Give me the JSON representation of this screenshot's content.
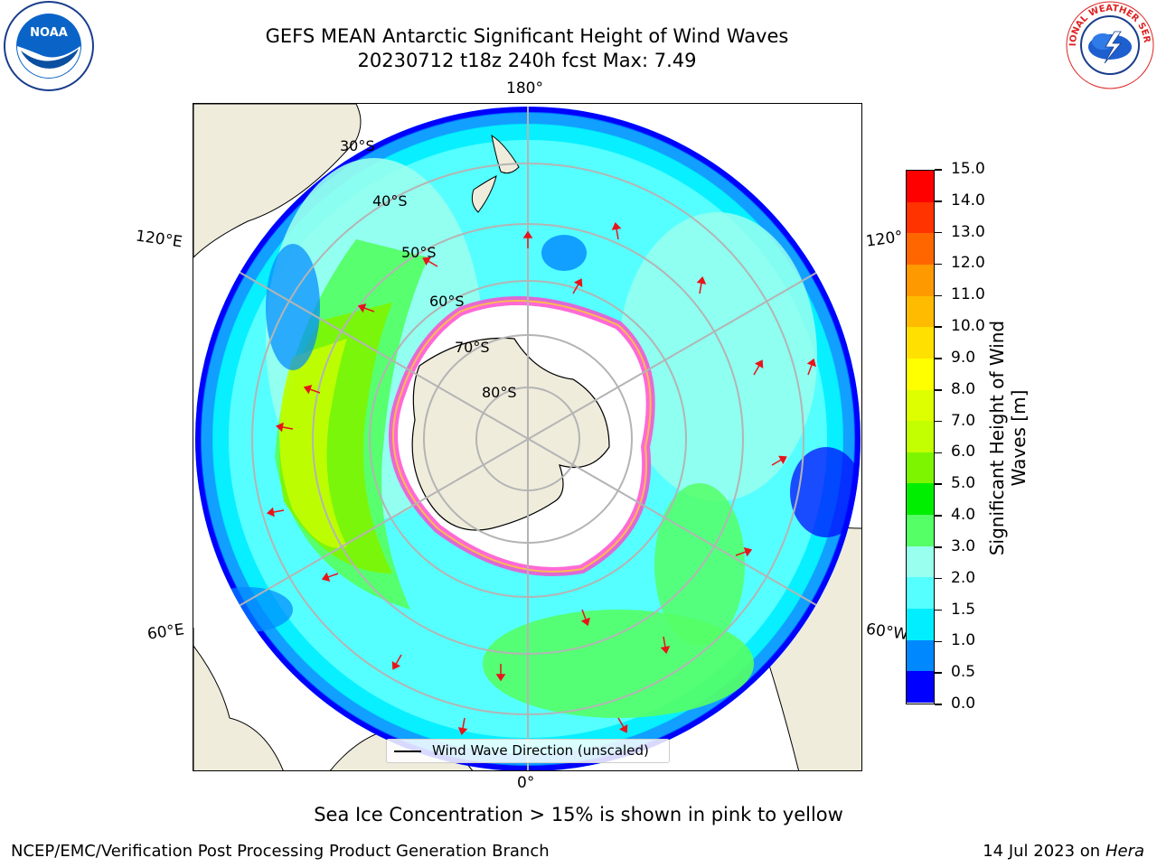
{
  "title": {
    "line1": "GEFS MEAN Antarctic Significant Height of Wind Waves",
    "line2": "20230712 t18z 240h fcst   Max: 7.49"
  },
  "logos": {
    "left_text": "NOAA",
    "right_text": "NATIONAL WEATHER SERVICE"
  },
  "map": {
    "projection": "south-polar-stereographic",
    "lon_labels": {
      "top": "180°",
      "bottom": "0°",
      "upper_left": "120°E",
      "upper_right": "120°",
      "lower_left": "60°E",
      "lower_right": "60°W"
    },
    "lat_labels": [
      "30°S",
      "40°S",
      "50°S",
      "60°S",
      "70°S",
      "80°S"
    ],
    "legend_label": "Wind Wave Direction (unscaled)",
    "colors": {
      "land": "#efecdc",
      "ice": "#ffffff",
      "grid": "#b4b4b4"
    }
  },
  "colorbar": {
    "label": "Significant Height of Wind Waves [m]",
    "ticks": [
      "15.0",
      "14.0",
      "13.0",
      "12.0",
      "11.0",
      "10.0",
      "9.0",
      "8.0",
      "7.0",
      "6.0",
      "5.0",
      "4.0",
      "3.0",
      "2.0",
      "1.5",
      "1.0",
      "0.5",
      "0.0"
    ],
    "colors": [
      "#ff0000",
      "#ff3300",
      "#ff6600",
      "#ff9900",
      "#ffbb00",
      "#ffe000",
      "#ffff00",
      "#ddff00",
      "#c3ff00",
      "#7ef500",
      "#00ee00",
      "#55ff66",
      "#99ffee",
      "#55ffff",
      "#00eeff",
      "#0088ff",
      "#0000ff"
    ]
  },
  "note": "Sea Ice Concentration > 15% is shown in pink to yellow",
  "footer": {
    "left": "NCEP/EMC/Verification Post Processing Product Generation Branch",
    "right_date": "14 Jul 2023 on ",
    "right_machine": "Hera"
  }
}
